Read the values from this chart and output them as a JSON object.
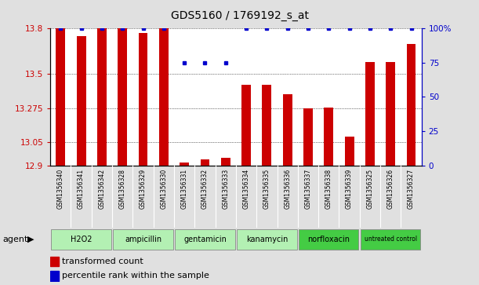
{
  "title": "GDS5160 / 1769192_s_at",
  "samples": [
    "GSM1356340",
    "GSM1356341",
    "GSM1356342",
    "GSM1356328",
    "GSM1356329",
    "GSM1356330",
    "GSM1356331",
    "GSM1356332",
    "GSM1356333",
    "GSM1356334",
    "GSM1356335",
    "GSM1356336",
    "GSM1356337",
    "GSM1356338",
    "GSM1356339",
    "GSM1356325",
    "GSM1356326",
    "GSM1356327"
  ],
  "transformed_count": [
    13.8,
    13.75,
    13.8,
    13.8,
    13.77,
    13.8,
    12.92,
    12.94,
    12.95,
    13.43,
    13.43,
    13.37,
    13.275,
    13.28,
    13.09,
    13.58,
    13.58,
    13.7
  ],
  "percentile_rank": [
    100,
    100,
    100,
    100,
    100,
    100,
    75,
    75,
    75,
    100,
    100,
    100,
    100,
    100,
    100,
    100,
    100,
    100
  ],
  "groups": [
    {
      "label": "H2O2",
      "start": 0,
      "end": 3,
      "color": "#b3f0b3"
    },
    {
      "label": "ampicillin",
      "start": 3,
      "end": 6,
      "color": "#b3f0b3"
    },
    {
      "label": "gentamicin",
      "start": 6,
      "end": 9,
      "color": "#b3f0b3"
    },
    {
      "label": "kanamycin",
      "start": 9,
      "end": 12,
      "color": "#b3f0b3"
    },
    {
      "label": "norfloxacin",
      "start": 12,
      "end": 15,
      "color": "#44cc44"
    },
    {
      "label": "untreated control",
      "start": 15,
      "end": 18,
      "color": "#44cc44"
    }
  ],
  "ylim": [
    12.9,
    13.8
  ],
  "yticks": [
    12.9,
    13.05,
    13.275,
    13.5,
    13.8
  ],
  "ytick_labels": [
    "12.9",
    "13.05",
    "13.275",
    "13.5",
    "13.8"
  ],
  "right_yticks": [
    0,
    25,
    50,
    75,
    100
  ],
  "right_ytick_labels": [
    "0",
    "25",
    "50",
    "75",
    "100%"
  ],
  "bar_color": "#cc0000",
  "dot_color": "#0000cc",
  "legend_bar_label": "transformed count",
  "legend_dot_label": "percentile rank within the sample",
  "sample_bg_color": "#c8c8c8",
  "plot_bg_color": "#ffffff",
  "fig_bg_color": "#e0e0e0"
}
